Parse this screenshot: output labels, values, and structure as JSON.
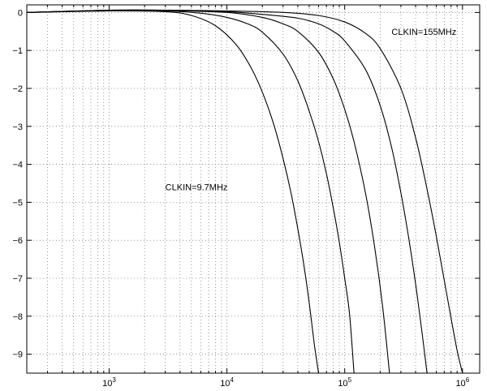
{
  "chart_data": {
    "type": "line",
    "title": "",
    "xlabel": "",
    "ylabel": "",
    "x_scale": "log",
    "xlim": [
      200,
      1400000
    ],
    "ylim": [
      -9.5,
      0.2
    ],
    "grid": true,
    "x_ticks": [
      {
        "value": 1000,
        "base": "10",
        "exp": "3"
      },
      {
        "value": 10000,
        "base": "10",
        "exp": "4"
      },
      {
        "value": 100000,
        "base": "10",
        "exp": "5"
      },
      {
        "value": 1000000,
        "base": "10",
        "exp": "6"
      }
    ],
    "y_ticks": [
      {
        "value": 0,
        "label": "0"
      },
      {
        "value": -1,
        "label": "−1"
      },
      {
        "value": -2,
        "label": "−2"
      },
      {
        "value": -3,
        "label": "−3"
      },
      {
        "value": -4,
        "label": "−4"
      },
      {
        "value": -5,
        "label": "−5"
      },
      {
        "value": -6,
        "label": "−6"
      },
      {
        "value": -7,
        "label": "−7"
      },
      {
        "value": -8,
        "label": "−8"
      },
      {
        "value": -9,
        "label": "−9"
      }
    ],
    "series": [
      {
        "x": [
          200,
          1000,
          3000,
          5000,
          8000,
          12000,
          16000,
          20000,
          25000,
          30000,
          35000,
          40000,
          45000,
          50000,
          55000,
          60000
        ],
        "y": [
          0,
          0.04,
          0.02,
          -0.08,
          -0.35,
          -0.85,
          -1.45,
          -2.1,
          -2.95,
          -3.85,
          -4.75,
          -5.7,
          -6.65,
          -7.65,
          -8.7,
          -9.5
        ]
      },
      {
        "x": [
          200,
          1000,
          3000,
          6000,
          10000,
          15000,
          20000,
          30000,
          40000,
          50000,
          60000,
          70000,
          80000,
          90000,
          100000,
          110000,
          120000
        ],
        "y": [
          0,
          0.05,
          0.04,
          -0.02,
          -0.13,
          -0.3,
          -0.52,
          -1.1,
          -1.8,
          -2.6,
          -3.4,
          -4.25,
          -5.15,
          -6.05,
          -7.0,
          -7.95,
          -9.5
        ]
      },
      {
        "x": [
          200,
          1000,
          3000,
          10000,
          20000,
          30000,
          40000,
          60000,
          80000,
          100000,
          120000,
          150000,
          180000,
          210000,
          240000
        ],
        "y": [
          0,
          0.05,
          0.05,
          0.0,
          -0.13,
          -0.3,
          -0.5,
          -1.05,
          -1.75,
          -2.55,
          -3.4,
          -4.75,
          -6.2,
          -7.75,
          -9.5
        ]
      },
      {
        "x": [
          200,
          1000,
          3000,
          10000,
          20000,
          40000,
          60000,
          80000,
          100000,
          150000,
          200000,
          250000,
          300000,
          350000,
          400000,
          450000,
          500000
        ],
        "y": [
          0,
          0.06,
          0.06,
          0.02,
          -0.05,
          -0.15,
          -0.3,
          -0.5,
          -0.75,
          -1.5,
          -2.45,
          -3.55,
          -4.75,
          -5.95,
          -7.15,
          -8.35,
          -9.5
        ]
      },
      {
        "x": [
          200,
          1000,
          3000,
          10000,
          30000,
          60000,
          100000,
          150000,
          200000,
          300000,
          400000,
          500000,
          600000,
          700000,
          800000,
          900000,
          1000000
        ],
        "y": [
          0,
          0.06,
          0.06,
          0.04,
          0.0,
          -0.08,
          -0.25,
          -0.55,
          -0.95,
          -2.0,
          -3.3,
          -4.65,
          -5.9,
          -7.05,
          -8.05,
          -8.9,
          -9.5
        ]
      }
    ],
    "annotations": [
      {
        "text": "CLKIN=155MHz",
        "x": 250000,
        "y": -0.5
      },
      {
        "text": "CLKIN=9.7MHz",
        "x": 3000,
        "y": -4.6
      }
    ],
    "colors": {
      "line": "#000000",
      "grid": "#555555",
      "axis": "#000000"
    }
  }
}
